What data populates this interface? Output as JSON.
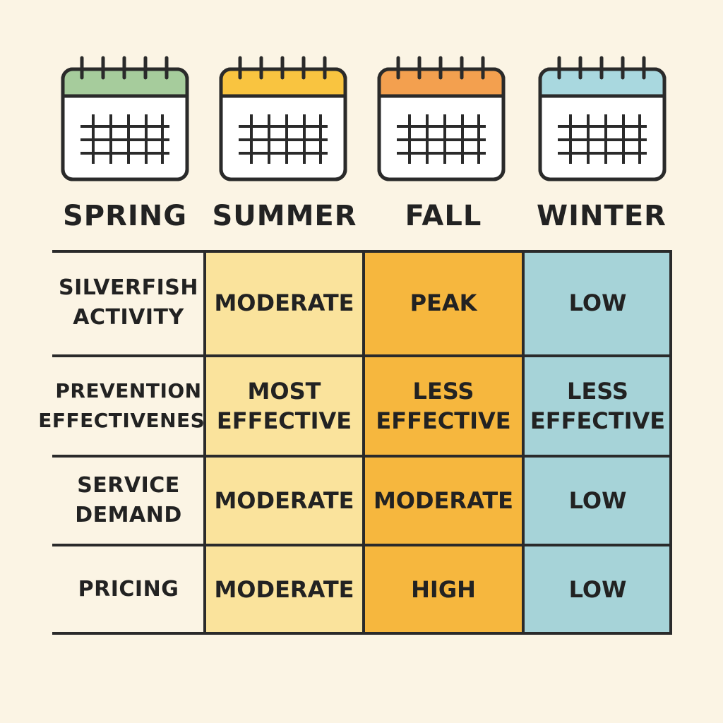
{
  "seasons": [
    {
      "label": "SPRING",
      "color": "#a6cc9c"
    },
    {
      "label": "SUMMER",
      "color": "#f9c440"
    },
    {
      "label": "FALL",
      "color": "#f3a04f"
    },
    {
      "label": "WINTER",
      "color": "#a9d8df"
    }
  ],
  "colors": {
    "background": "#fbf4e4",
    "summer_cell": "#fae39c",
    "fall_cell": "#f6b73e",
    "winter_cell": "#a6d3d8",
    "outline": "#2a2a2a"
  },
  "rows": [
    {
      "label": "SILVERFISH\nACTIVITY",
      "values": [
        "MODERATE",
        "PEAK",
        "LOW"
      ]
    },
    {
      "label": "PREVENTION\nEFFECTIVENESS",
      "values": [
        "MOST\nEFFECTIVE",
        "LESS\nEFFECTIVE",
        "LESS\nEFFECTIVE"
      ]
    },
    {
      "label": "SERVICE\nDEMAND",
      "values": [
        "MODERATE",
        "MODERATE",
        "LOW"
      ]
    },
    {
      "label": "PRICING",
      "values": [
        "MODERATE",
        "HIGH",
        "LOW"
      ]
    }
  ]
}
